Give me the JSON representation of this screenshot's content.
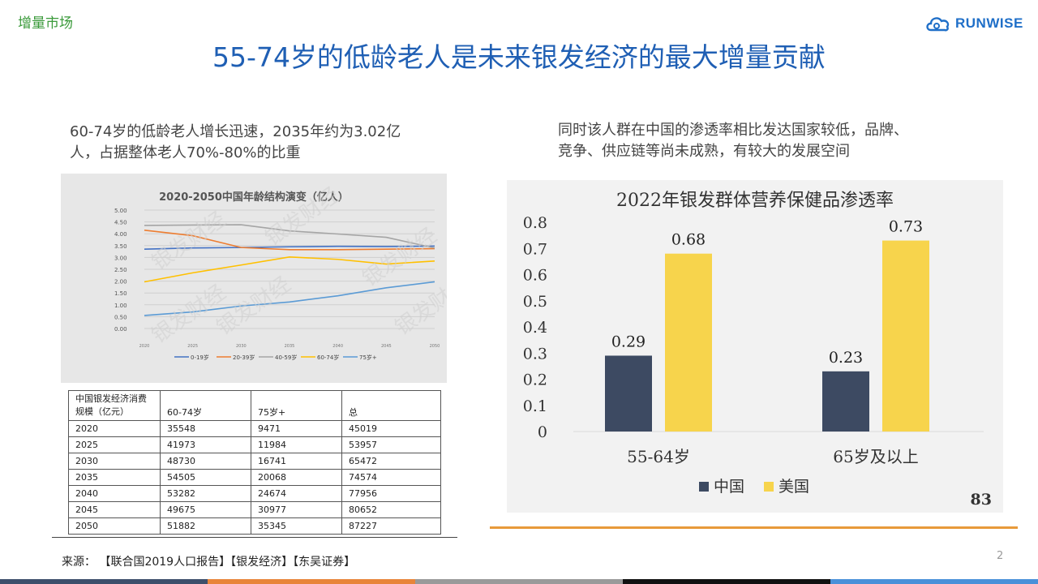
{
  "header": {
    "section_tag": "增量市场",
    "logo_text": "RUNWISE",
    "title": "55-74岁的低龄老人是未来银发经济的最大增量贡献"
  },
  "left": {
    "description": "60-74岁的低龄老人增长迅速，2035年约为3.02亿人，占据整体老人70%-80%的比重",
    "description_lines": [
      "60-74岁的低龄老人增长迅速，2035年约为3.02亿",
      "人，占据整体老人70%-80%的比重"
    ],
    "watermark": "银发财经"
  },
  "right": {
    "description_lines": [
      "同时该人群在中国的渗透率相比发达国家较低，品牌、",
      "竞争、供应链等尚未成熟，有较大的发展空间"
    ],
    "page_badge": "83"
  },
  "table": {
    "header": [
      "中国银发经济消费规模（亿元）",
      "60-74岁",
      "75岁+",
      "总"
    ],
    "header_line1": "中国银发经济消费",
    "header_line2": "规模（亿元）",
    "rows": [
      [
        "2020",
        "35548",
        "9471",
        "45019"
      ],
      [
        "2025",
        "41973",
        "11984",
        "53957"
      ],
      [
        "2030",
        "48730",
        "16741",
        "65472"
      ],
      [
        "2035",
        "54505",
        "20068",
        "74574"
      ],
      [
        "2040",
        "53282",
        "24674",
        "77956"
      ],
      [
        "2045",
        "49675",
        "30977",
        "80652"
      ],
      [
        "2050",
        "51882",
        "35345",
        "87227"
      ]
    ]
  },
  "footer": {
    "source": "来源：  【联合国2019人口报告】【银发经济】【东吴证券】",
    "page_number": "2",
    "bar_colors": [
      "#3d4f6b",
      "#e8853a",
      "#9a9a9a",
      "#111111",
      "#4a90d9"
    ]
  },
  "colors": {
    "title_blue": "#1f5fb4",
    "tag_green": "#3a9a3a",
    "china_bar": "#3d4a62",
    "usa_bar": "#f7d44c"
  },
  "chart_data": [
    {
      "type": "line",
      "title": "2020-2050中国年龄结构演变（亿人）",
      "x": [
        "2020",
        "2025",
        "2030",
        "2035",
        "2040",
        "2045",
        "2050"
      ],
      "ylim": [
        0,
        5
      ],
      "yticks": [
        "0.00",
        "0.50",
        "1.00",
        "1.50",
        "2.00",
        "2.50",
        "3.00",
        "3.50",
        "4.00",
        "4.50",
        "5.00"
      ],
      "grid": true,
      "legend_position": "bottom",
      "series": [
        {
          "name": "0-19岁",
          "color": "#4472c4",
          "values": [
            3.35,
            3.4,
            3.42,
            3.45,
            3.47,
            3.46,
            3.48
          ]
        },
        {
          "name": "20-39岁",
          "color": "#ed7d31",
          "values": [
            4.15,
            3.92,
            3.42,
            3.33,
            3.33,
            3.35,
            3.37
          ]
        },
        {
          "name": "40-59岁",
          "color": "#a5a5a5",
          "values": [
            4.35,
            4.37,
            4.38,
            4.12,
            3.99,
            3.85,
            3.4
          ]
        },
        {
          "name": "60-74岁",
          "color": "#ffc000",
          "values": [
            1.97,
            2.35,
            2.68,
            3.02,
            2.92,
            2.72,
            2.85
          ]
        },
        {
          "name": "75岁+",
          "color": "#5b9bd5",
          "values": [
            0.55,
            0.7,
            0.95,
            1.12,
            1.38,
            1.72,
            1.97
          ]
        }
      ]
    },
    {
      "type": "bar",
      "title": "2022年银发群体营养保健品渗透率",
      "categories": [
        "55-64岁",
        "65岁及以上"
      ],
      "ylim": [
        0,
        0.8
      ],
      "yticks": [
        "0",
        "0.1",
        "0.2",
        "0.3",
        "0.4",
        "0.5",
        "0.6",
        "0.7",
        "0.8"
      ],
      "legend_position": "bottom",
      "series": [
        {
          "name": "中国",
          "color": "#3d4a62",
          "values": [
            0.29,
            0.23
          ],
          "labels": [
            "0.29",
            "0.23"
          ]
        },
        {
          "name": "美国",
          "color": "#f7d44c",
          "values": [
            0.68,
            0.73
          ],
          "labels": [
            "0.68",
            "0.73"
          ]
        }
      ]
    }
  ]
}
